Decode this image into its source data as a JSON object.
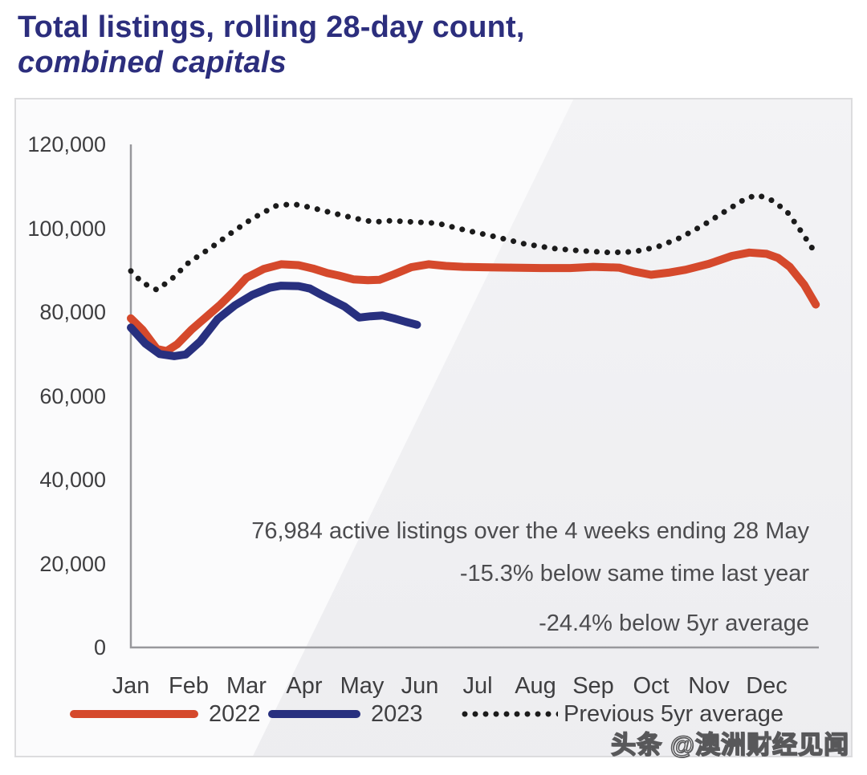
{
  "page": {
    "title_line1": "Total listings, rolling 28-day count,",
    "title_line2": "combined capitals",
    "watermark": "头条 @澳洲财经见闻"
  },
  "chart_data": {
    "type": "line",
    "title": "Total listings, rolling 28-day count, combined capitals",
    "x_categories": [
      "Jan",
      "Feb",
      "Mar",
      "Apr",
      "May",
      "Jun",
      "Jul",
      "Aug",
      "Sep",
      "Oct",
      "Nov",
      "Dec"
    ],
    "y_axis": {
      "min": 0,
      "max": 120000,
      "tick_step": 20000,
      "tick_labels_top_to_bottom": [
        "120,000",
        "100,000",
        "80,000",
        "60,000",
        "40,000",
        "20,000",
        "0"
      ]
    },
    "grid": false,
    "legend_position": "bottom",
    "series": [
      {
        "name": "2022",
        "style": "solid",
        "color": "#d5492c",
        "x_unit": "month_index_0_to_12",
        "points": [
          [
            0.0,
            78500
          ],
          [
            0.2,
            75800
          ],
          [
            0.45,
            71200
          ],
          [
            0.62,
            70700
          ],
          [
            0.8,
            72300
          ],
          [
            1.05,
            75800
          ],
          [
            1.3,
            78800
          ],
          [
            1.55,
            81800
          ],
          [
            1.8,
            85200
          ],
          [
            2.0,
            88200
          ],
          [
            2.3,
            90300
          ],
          [
            2.6,
            91400
          ],
          [
            2.9,
            91200
          ],
          [
            3.15,
            90400
          ],
          [
            3.4,
            89300
          ],
          [
            3.6,
            88700
          ],
          [
            3.85,
            87800
          ],
          [
            4.1,
            87600
          ],
          [
            4.3,
            87700
          ],
          [
            4.55,
            89000
          ],
          [
            4.85,
            90700
          ],
          [
            5.15,
            91400
          ],
          [
            5.45,
            91000
          ],
          [
            5.75,
            90800
          ],
          [
            6.1,
            90700
          ],
          [
            6.6,
            90600
          ],
          [
            7.1,
            90500
          ],
          [
            7.6,
            90500
          ],
          [
            8.0,
            90800
          ],
          [
            8.45,
            90600
          ],
          [
            8.7,
            89700
          ],
          [
            9.0,
            88900
          ],
          [
            9.3,
            89400
          ],
          [
            9.6,
            90100
          ],
          [
            10.0,
            91500
          ],
          [
            10.4,
            93400
          ],
          [
            10.7,
            94200
          ],
          [
            11.0,
            93900
          ],
          [
            11.2,
            92900
          ],
          [
            11.4,
            90800
          ],
          [
            11.65,
            86500
          ],
          [
            11.85,
            81800
          ]
        ]
      },
      {
        "name": "2023",
        "style": "solid",
        "color": "#28307f",
        "x_unit": "month_index_0_to_12",
        "points": [
          [
            0.0,
            76300
          ],
          [
            0.25,
            72500
          ],
          [
            0.5,
            70000
          ],
          [
            0.75,
            69500
          ],
          [
            0.95,
            69900
          ],
          [
            1.2,
            73000
          ],
          [
            1.5,
            78300
          ],
          [
            1.8,
            81600
          ],
          [
            2.1,
            84100
          ],
          [
            2.4,
            85800
          ],
          [
            2.6,
            86300
          ],
          [
            2.9,
            86200
          ],
          [
            3.1,
            85600
          ],
          [
            3.3,
            84100
          ],
          [
            3.5,
            82700
          ],
          [
            3.7,
            81300
          ],
          [
            3.95,
            78700
          ],
          [
            4.15,
            79000
          ],
          [
            4.35,
            79200
          ],
          [
            4.55,
            78500
          ],
          [
            4.75,
            77700
          ],
          [
            4.95,
            76980
          ]
        ]
      },
      {
        "name": "Previous 5yr average",
        "style": "dotted",
        "color": "#1b1b1b",
        "x_unit": "month_index_0_to_12",
        "points": [
          [
            0.0,
            89800
          ],
          [
            0.2,
            87000
          ],
          [
            0.45,
            85300
          ],
          [
            0.7,
            87800
          ],
          [
            1.0,
            91800
          ],
          [
            1.4,
            95500
          ],
          [
            1.8,
            99500
          ],
          [
            2.1,
            102300
          ],
          [
            2.5,
            105300
          ],
          [
            2.8,
            105800
          ],
          [
            3.1,
            105000
          ],
          [
            3.5,
            103600
          ],
          [
            3.9,
            102300
          ],
          [
            4.2,
            101500
          ],
          [
            4.5,
            101800
          ],
          [
            4.9,
            101500
          ],
          [
            5.3,
            101200
          ],
          [
            5.8,
            99500
          ],
          [
            6.3,
            98000
          ],
          [
            6.8,
            96300
          ],
          [
            7.3,
            95200
          ],
          [
            7.8,
            94600
          ],
          [
            8.3,
            94200
          ],
          [
            8.7,
            94400
          ],
          [
            9.1,
            95500
          ],
          [
            9.5,
            97700
          ],
          [
            9.9,
            100700
          ],
          [
            10.3,
            104200
          ],
          [
            10.65,
            107200
          ],
          [
            10.85,
            107900
          ],
          [
            11.1,
            106600
          ],
          [
            11.35,
            104000
          ],
          [
            11.6,
            99200
          ],
          [
            11.8,
            95000
          ],
          [
            11.88,
            93300
          ]
        ]
      }
    ],
    "annotations": [
      "76,984 active listings over the 4 weeks ending 28 May",
      "-15.3% below same time last year",
      "-24.4% below 5yr average"
    ]
  }
}
